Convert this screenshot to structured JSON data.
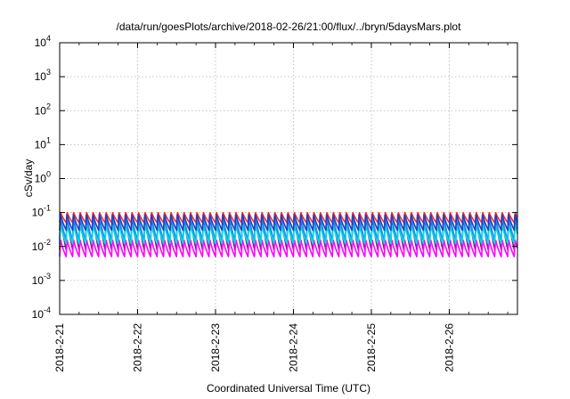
{
  "chart_data": {
    "type": "line",
    "title": "/data/run/goesPlots/archive/2018-02-26/21:00/flux/../bryn/5daysMars.plot",
    "xlabel": "Coordinated Universal Time (UTC)",
    "ylabel": "cSv/day",
    "yscale": "log",
    "ylim": [
      0.0001,
      10000
    ],
    "xlim": [
      "2018-02-21",
      "2018-02-26T21:00"
    ],
    "grid": true,
    "y_ticks": [
      {
        "base": "10",
        "exp": "-4"
      },
      {
        "base": "10",
        "exp": "-3"
      },
      {
        "base": "10",
        "exp": "-2"
      },
      {
        "base": "10",
        "exp": "-1"
      },
      {
        "base": "10",
        "exp": "0"
      },
      {
        "base": "10",
        "exp": "1"
      },
      {
        "base": "10",
        "exp": "2"
      },
      {
        "base": "10",
        "exp": "3"
      },
      {
        "base": "10",
        "exp": "4"
      }
    ],
    "x_ticks": [
      "2018-2-21",
      "2018-2-22",
      "2018-2-23",
      "2018-2-24",
      "2018-2-25",
      "2018-2-26"
    ],
    "cycle_hours": 2.0,
    "series": [
      {
        "color": "#ff2a2a",
        "peak": 0.11,
        "low": 0.05
      },
      {
        "color": "#8a1a8a",
        "peak": 0.1,
        "low": 0.008
      },
      {
        "color": "#ff00ff",
        "peak": 0.018,
        "low": 0.005
      },
      {
        "color": "#1e90ff",
        "peak": 0.1,
        "low": 0.015
      },
      {
        "color": "#00dddd",
        "peak": 0.05,
        "low": 0.012
      },
      {
        "color": "#2040c0",
        "peak": 0.1,
        "low": 0.03
      }
    ]
  }
}
